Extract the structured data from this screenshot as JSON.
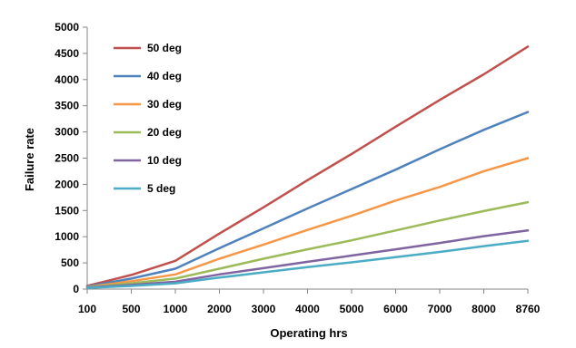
{
  "chart_data": {
    "type": "line",
    "title": "",
    "xlabel": "Operating hrs",
    "ylabel": "Failure rate",
    "categories": [
      "100",
      "500",
      "1000",
      "2000",
      "3000",
      "4000",
      "5000",
      "6000",
      "7000",
      "8000",
      "8760"
    ],
    "ylim": [
      0,
      5000
    ],
    "yticks": [
      "0",
      "500",
      "1000",
      "1500",
      "2000",
      "2500",
      "3000",
      "3500",
      "4000",
      "4500",
      "5000"
    ],
    "grid": false,
    "legend_position": "top-left",
    "series": [
      {
        "name": "50 deg",
        "color": "#C0504D",
        "values": [
          60,
          270,
          540,
          1060,
          1560,
          2080,
          2580,
          3100,
          3610,
          4100,
          4630
        ]
      },
      {
        "name": "40 deg",
        "color": "#4F81BD",
        "values": [
          50,
          200,
          390,
          780,
          1160,
          1540,
          1910,
          2280,
          2670,
          3040,
          3380
        ]
      },
      {
        "name": "30 deg",
        "color": "#F79646",
        "values": [
          40,
          150,
          280,
          580,
          850,
          1130,
          1400,
          1690,
          1950,
          2250,
          2500
        ]
      },
      {
        "name": "20 deg",
        "color": "#9BBB59",
        "values": [
          35,
          110,
          200,
          390,
          580,
          760,
          930,
          1120,
          1310,
          1490,
          1660
        ]
      },
      {
        "name": "10 deg",
        "color": "#8064A2",
        "values": [
          30,
          80,
          140,
          280,
          400,
          520,
          640,
          760,
          880,
          1010,
          1120
        ]
      },
      {
        "name": "5 deg",
        "color": "#4BACC6",
        "values": [
          25,
          60,
          110,
          220,
          320,
          420,
          510,
          610,
          710,
          820,
          920
        ]
      }
    ]
  }
}
